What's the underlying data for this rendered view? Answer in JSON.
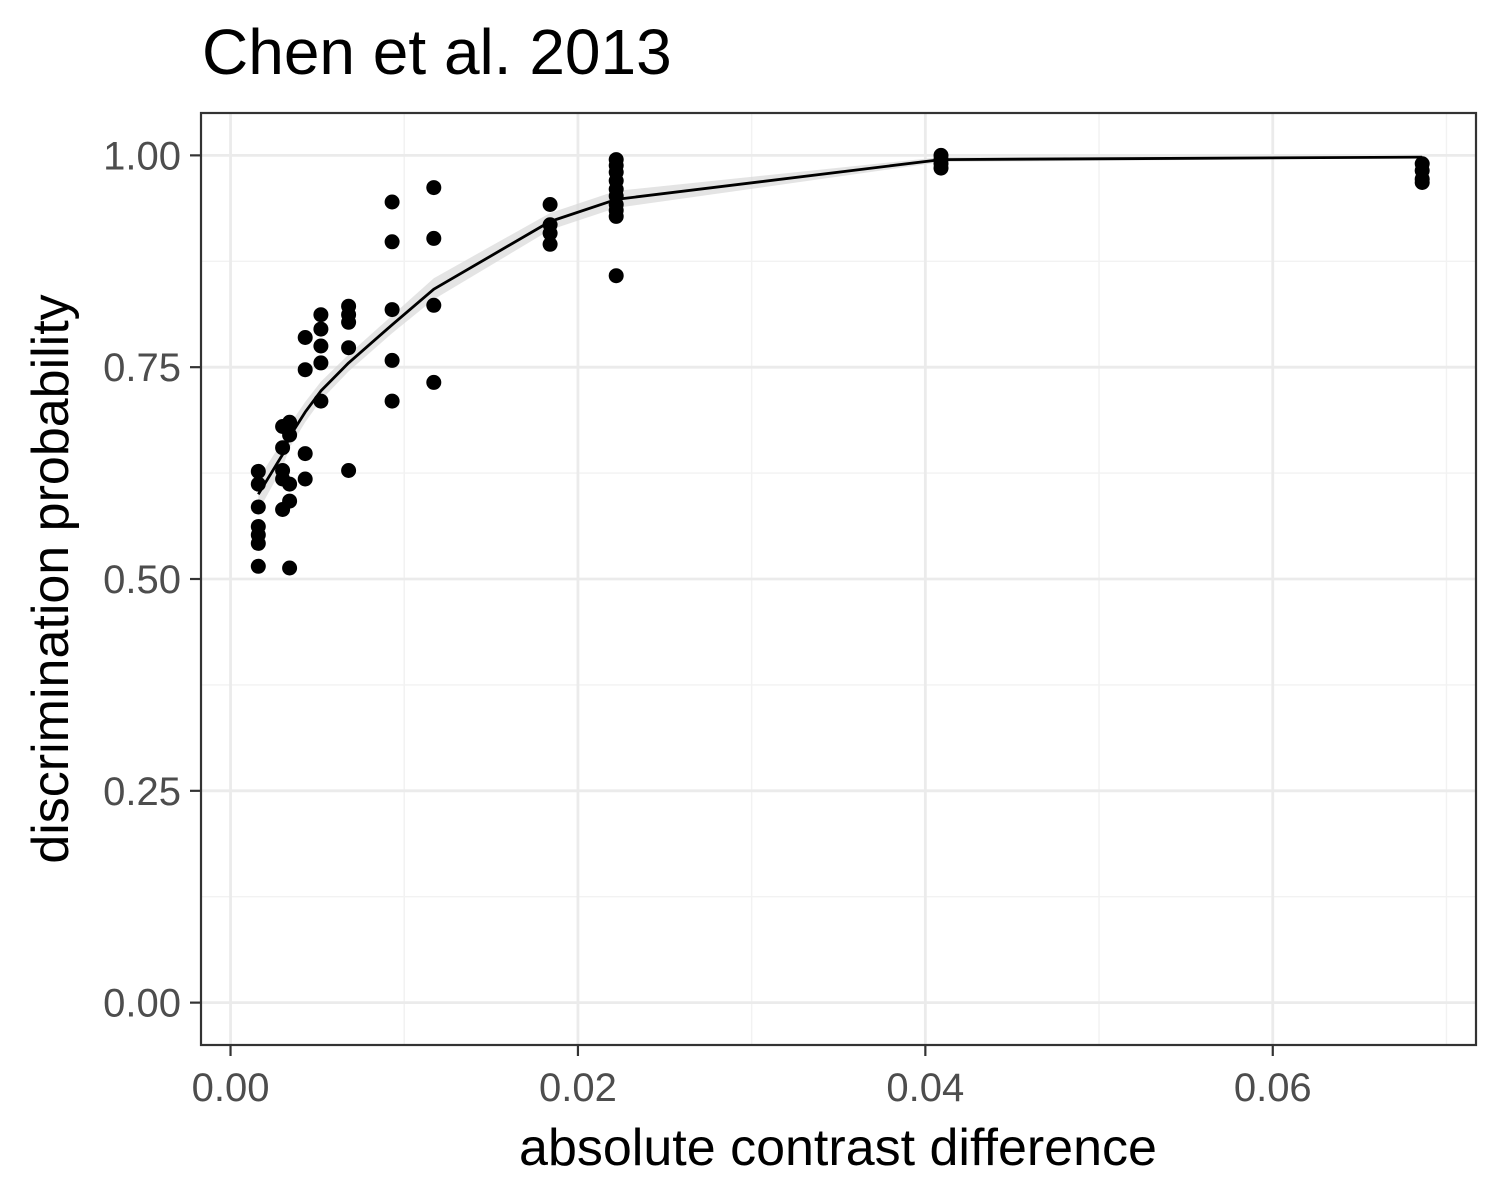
{
  "chart_data": {
    "type": "scatter",
    "title": "Chen et al. 2013",
    "xlabel": "absolute contrast difference",
    "ylabel": "discrimination probability",
    "xlim": [
      -0.0017,
      0.0717
    ],
    "ylim": [
      -0.05,
      1.05
    ],
    "x_ticks": [
      0.0,
      0.02,
      0.04,
      0.06
    ],
    "x_tick_labels": [
      "0.00",
      "0.02",
      "0.04",
      "0.06"
    ],
    "y_ticks": [
      0.0,
      0.25,
      0.5,
      0.75,
      1.0
    ],
    "y_tick_labels": [
      "0.00",
      "0.25",
      "0.50",
      "0.75",
      "1.00"
    ],
    "grid": true,
    "legend": "none",
    "point_color": "#000000",
    "line_color": "#000000",
    "band_color": "#d9d9d9",
    "points": [
      {
        "x": 0.0016,
        "y": 0.627
      },
      {
        "x": 0.0016,
        "y": 0.612
      },
      {
        "x": 0.0016,
        "y": 0.585
      },
      {
        "x": 0.0016,
        "y": 0.562
      },
      {
        "x": 0.0016,
        "y": 0.552
      },
      {
        "x": 0.0016,
        "y": 0.542
      },
      {
        "x": 0.0016,
        "y": 0.515
      },
      {
        "x": 0.003,
        "y": 0.68
      },
      {
        "x": 0.003,
        "y": 0.655
      },
      {
        "x": 0.003,
        "y": 0.628
      },
      {
        "x": 0.003,
        "y": 0.618
      },
      {
        "x": 0.003,
        "y": 0.582
      },
      {
        "x": 0.0034,
        "y": 0.685
      },
      {
        "x": 0.0034,
        "y": 0.67
      },
      {
        "x": 0.0034,
        "y": 0.612
      },
      {
        "x": 0.0034,
        "y": 0.592
      },
      {
        "x": 0.0034,
        "y": 0.513
      },
      {
        "x": 0.0043,
        "y": 0.785
      },
      {
        "x": 0.0043,
        "y": 0.747
      },
      {
        "x": 0.0043,
        "y": 0.648
      },
      {
        "x": 0.0043,
        "y": 0.618
      },
      {
        "x": 0.0052,
        "y": 0.812
      },
      {
        "x": 0.0052,
        "y": 0.795
      },
      {
        "x": 0.0052,
        "y": 0.775
      },
      {
        "x": 0.0052,
        "y": 0.755
      },
      {
        "x": 0.0052,
        "y": 0.71
      },
      {
        "x": 0.0068,
        "y": 0.822
      },
      {
        "x": 0.0068,
        "y": 0.812
      },
      {
        "x": 0.0068,
        "y": 0.803
      },
      {
        "x": 0.0068,
        "y": 0.773
      },
      {
        "x": 0.0068,
        "y": 0.628
      },
      {
        "x": 0.0093,
        "y": 0.945
      },
      {
        "x": 0.0093,
        "y": 0.898
      },
      {
        "x": 0.0093,
        "y": 0.818
      },
      {
        "x": 0.0093,
        "y": 0.758
      },
      {
        "x": 0.0093,
        "y": 0.71
      },
      {
        "x": 0.0117,
        "y": 0.962
      },
      {
        "x": 0.0117,
        "y": 0.902
      },
      {
        "x": 0.0117,
        "y": 0.823
      },
      {
        "x": 0.0117,
        "y": 0.732
      },
      {
        "x": 0.0184,
        "y": 0.942
      },
      {
        "x": 0.0184,
        "y": 0.918
      },
      {
        "x": 0.0184,
        "y": 0.908
      },
      {
        "x": 0.0184,
        "y": 0.895
      },
      {
        "x": 0.0222,
        "y": 0.995
      },
      {
        "x": 0.0222,
        "y": 0.988
      },
      {
        "x": 0.0222,
        "y": 0.98
      },
      {
        "x": 0.0222,
        "y": 0.97
      },
      {
        "x": 0.0222,
        "y": 0.96
      },
      {
        "x": 0.0222,
        "y": 0.952
      },
      {
        "x": 0.0222,
        "y": 0.942
      },
      {
        "x": 0.0222,
        "y": 0.935
      },
      {
        "x": 0.0222,
        "y": 0.928
      },
      {
        "x": 0.0222,
        "y": 0.858
      },
      {
        "x": 0.0409,
        "y": 1.0
      },
      {
        "x": 0.0409,
        "y": 0.995
      },
      {
        "x": 0.0409,
        "y": 0.99
      },
      {
        "x": 0.0409,
        "y": 0.985
      },
      {
        "x": 0.0686,
        "y": 0.99
      },
      {
        "x": 0.0686,
        "y": 0.982
      },
      {
        "x": 0.0686,
        "y": 0.972
      },
      {
        "x": 0.0686,
        "y": 0.968
      }
    ],
    "fit_line": [
      {
        "x": 0.0016,
        "y": 0.6
      },
      {
        "x": 0.003,
        "y": 0.647
      },
      {
        "x": 0.0034,
        "y": 0.668
      },
      {
        "x": 0.0043,
        "y": 0.697
      },
      {
        "x": 0.0052,
        "y": 0.722
      },
      {
        "x": 0.0068,
        "y": 0.755
      },
      {
        "x": 0.0093,
        "y": 0.8
      },
      {
        "x": 0.0117,
        "y": 0.842
      },
      {
        "x": 0.0184,
        "y": 0.922
      },
      {
        "x": 0.0222,
        "y": 0.948
      },
      {
        "x": 0.0409,
        "y": 0.995
      },
      {
        "x": 0.0686,
        "y": 0.998
      }
    ],
    "fit_band": [
      {
        "x": 0.0016,
        "lo": 0.58,
        "hi": 0.618
      },
      {
        "x": 0.003,
        "lo": 0.632,
        "hi": 0.663
      },
      {
        "x": 0.0034,
        "lo": 0.655,
        "hi": 0.682
      },
      {
        "x": 0.0043,
        "lo": 0.685,
        "hi": 0.709
      },
      {
        "x": 0.0052,
        "lo": 0.711,
        "hi": 0.733
      },
      {
        "x": 0.0068,
        "lo": 0.745,
        "hi": 0.765
      },
      {
        "x": 0.0093,
        "lo": 0.79,
        "hi": 0.811
      },
      {
        "x": 0.0117,
        "lo": 0.83,
        "hi": 0.855
      },
      {
        "x": 0.0184,
        "lo": 0.912,
        "hi": 0.932
      },
      {
        "x": 0.0222,
        "lo": 0.938,
        "hi": 0.958
      },
      {
        "x": 0.0409,
        "lo": 0.992,
        "hi": 0.998
      },
      {
        "x": 0.0686,
        "lo": 0.997,
        "hi": 0.999
      }
    ]
  }
}
